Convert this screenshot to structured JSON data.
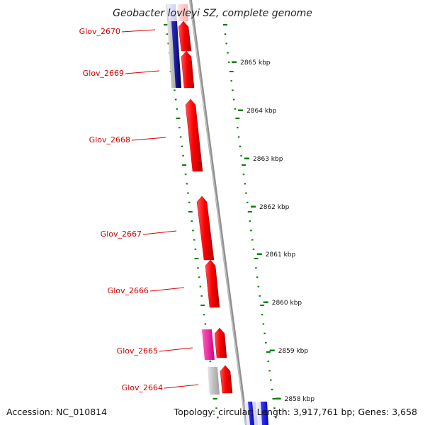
{
  "title": "Geobacter lovleyi SZ, complete genome",
  "accession": "Accession: NC_010814",
  "summary": "Topology: circular; Length: 3,917,761 bp; Genes: 3,658",
  "genes": [
    {
      "label": "Glov_2670"
    },
    {
      "label": "Glov_2669"
    },
    {
      "label": "Glov_2668"
    },
    {
      "label": "Glov_2667"
    },
    {
      "label": "Glov_2666"
    },
    {
      "label": "Glov_2665"
    },
    {
      "label": "Glov_2664"
    }
  ],
  "positions": [
    {
      "label": "2865 kbp"
    },
    {
      "label": "2864 kbp"
    },
    {
      "label": "2863 kbp"
    },
    {
      "label": "2862 kbp"
    },
    {
      "label": "2861 kbp"
    },
    {
      "label": "2860 kbp"
    },
    {
      "label": "2859 kbp"
    },
    {
      "label": "2858 kbp"
    }
  ],
  "colors": {
    "forward_cds": "#ff0000",
    "reverse_cds": "#000080",
    "other_feature": "#ff1493",
    "gene": "#c0c0c0",
    "label": "#d40000",
    "gc_ticks": "#008000",
    "backbone": "#808080"
  }
}
